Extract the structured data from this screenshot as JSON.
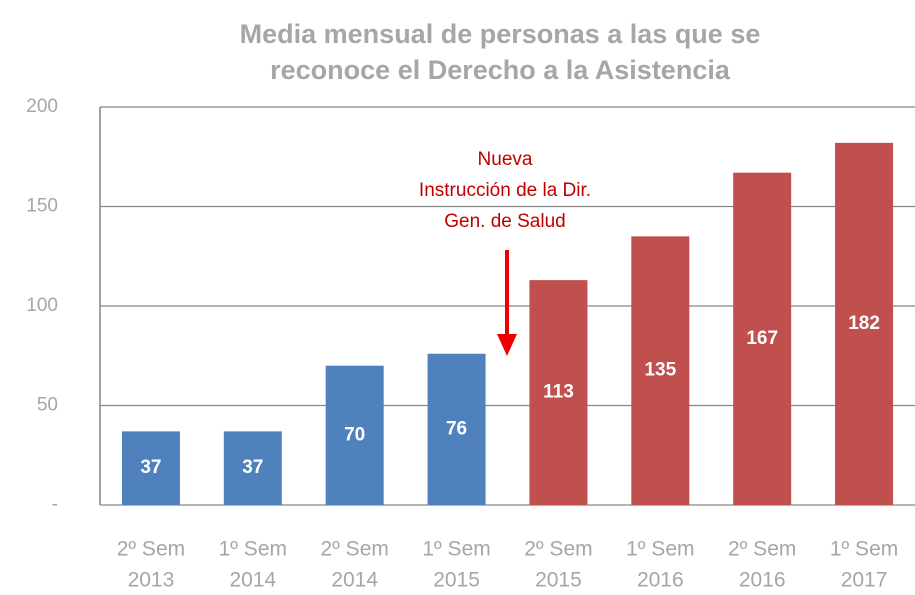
{
  "chart_data": {
    "type": "bar",
    "title": [
      "Media mensual de personas a las que se",
      "reconoce el Derecho a la Asistencia"
    ],
    "categories": [
      [
        "2º Sem",
        "2013"
      ],
      [
        "1º Sem",
        "2014"
      ],
      [
        "2º Sem",
        "2014"
      ],
      [
        "1º Sem",
        "2015"
      ],
      [
        "2º Sem",
        "2015"
      ],
      [
        "1º Sem",
        "2016"
      ],
      [
        "2º Sem",
        "2016"
      ],
      [
        "1º Sem",
        "2017"
      ]
    ],
    "values": [
      37,
      37,
      70,
      76,
      113,
      135,
      167,
      182
    ],
    "colors": [
      "#4f81bd",
      "#4f81bd",
      "#4f81bd",
      "#4f81bd",
      "#c0504d",
      "#c0504d",
      "#c0504d",
      "#c0504d"
    ],
    "ylim": [
      0,
      200
    ],
    "yticks": [
      {
        "value": 0,
        "label": "-"
      },
      50,
      100,
      150,
      200
    ],
    "grid": true,
    "annotation": [
      "Nueva",
      "Instrucción de la Dir.",
      "Gen. de Salud"
    ]
  }
}
